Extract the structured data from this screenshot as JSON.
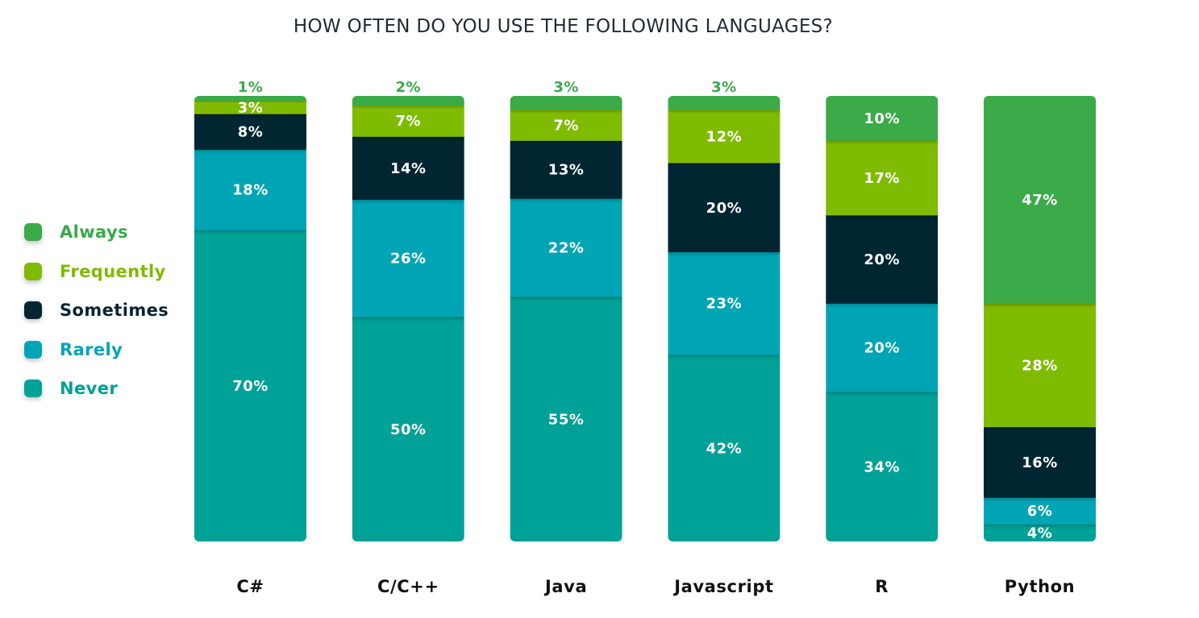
{
  "chart_data": {
    "type": "bar",
    "stacked": true,
    "title": "HOW OFTEN DO YOU USE THE FOLLOWING LANGUAGES?",
    "categories": [
      "C#",
      "C/C++",
      "Java",
      "Javascript",
      "R",
      "Python"
    ],
    "series": [
      {
        "name": "Always",
        "color": "#3aaa4a",
        "values": [
          1,
          2,
          3,
          3,
          10,
          47
        ]
      },
      {
        "name": "Frequently",
        "color": "#7fbb00",
        "values": [
          3,
          7,
          7,
          12,
          17,
          28
        ]
      },
      {
        "name": "Sometimes",
        "color": "#062530",
        "values": [
          8,
          14,
          13,
          20,
          20,
          16
        ]
      },
      {
        "name": "Rarely",
        "color": "#00a5b5",
        "values": [
          18,
          26,
          22,
          23,
          20,
          6
        ]
      },
      {
        "name": "Never",
        "color": "#00a196",
        "values": [
          70,
          50,
          55,
          42,
          34,
          4
        ]
      }
    ],
    "value_suffix": "%",
    "legend_position": "left",
    "grid": false
  }
}
